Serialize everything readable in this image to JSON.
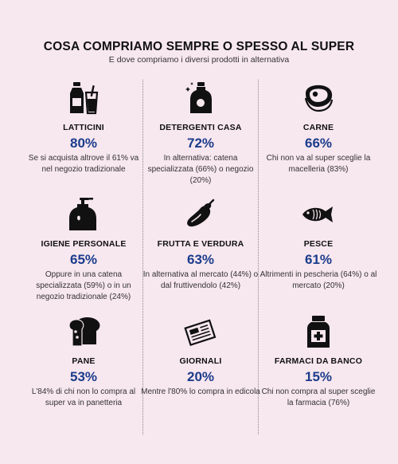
{
  "title": "COSA COMPRIAMO SEMPRE O SPESSO AL SUPER",
  "subtitle": "E dove compriamo i diversi prodotti in alternativa",
  "items": [
    {
      "category": "LATTICINI",
      "percent": "80%",
      "note": "Se si acquista altrove il 61% va nel negozio tradizionale",
      "icon": "milk-bottle-icon"
    },
    {
      "category": "DETERGENTI CASA",
      "percent": "72%",
      "note": "In alternativa: catena specializzata (66%) o negozio (20%)",
      "icon": "detergent-bottle-icon"
    },
    {
      "category": "CARNE",
      "percent": "66%",
      "note": "Chi non va al super sceglie la macelleria (83%)",
      "icon": "steak-icon"
    },
    {
      "category": "IGIENE PERSONALE",
      "percent": "65%",
      "note": "Oppure in una catena specializzata (59%) o in un negozio tradizionale (24%)",
      "icon": "soap-dispenser-icon"
    },
    {
      "category": "FRUTTA E VERDURA",
      "percent": "63%",
      "note": "In alternativa al mercato (44%) o dal fruttivendolo (42%)",
      "icon": "eggplant-icon"
    },
    {
      "category": "PESCE",
      "percent": "61%",
      "note": "Altrimenti in pescheria (64%) o al mercato (20%)",
      "icon": "fish-icon"
    },
    {
      "category": "PANE",
      "percent": "53%",
      "note": "L'84% di chi non lo compra al super va in panetteria",
      "icon": "bread-icon"
    },
    {
      "category": "GIORNALI",
      "percent": "20%",
      "note": "Mentre l'80% lo compra in edicola",
      "icon": "newspaper-icon"
    },
    {
      "category": "FARMACI DA BANCO",
      "percent": "15%",
      "note": "Chi non compra al super sceglie la farmacia (76%)",
      "icon": "medicine-bottle-icon"
    }
  ],
  "chart_data": {
    "type": "table",
    "title": "COSA COMPRIAMO SEMPRE O SPESSO AL SUPER",
    "subtitle": "E dove compriamo i diversi prodotti in alternativa",
    "categories": [
      "LATTICINI",
      "DETERGENTI CASA",
      "CARNE",
      "IGIENE PERSONALE",
      "FRUTTA E VERDURA",
      "PESCE",
      "PANE",
      "GIORNALI",
      "FARMACI DA BANCO"
    ],
    "values": [
      80,
      72,
      66,
      65,
      63,
      61,
      53,
      20,
      15
    ]
  },
  "colors": {
    "background": "#f7e7ee",
    "percent": "#1b3c8c",
    "text": "#1a1a1a"
  }
}
